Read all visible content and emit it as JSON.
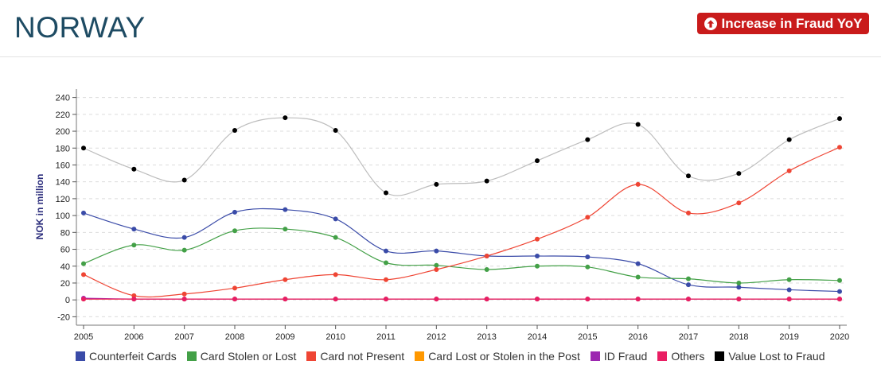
{
  "header": {
    "title": "NORWAY",
    "badge_label": "Increase in Fraud YoY",
    "badge_icon": "arrow-up-circle-icon",
    "badge_color": "#c91b1b"
  },
  "chart_data": {
    "type": "line",
    "x": [
      "2005",
      "2006",
      "2007",
      "2008",
      "2009",
      "2010",
      "2011",
      "2012",
      "2013",
      "2014",
      "2015",
      "2016",
      "2017",
      "2018",
      "2019",
      "2020"
    ],
    "ylabel": "NOK in million",
    "ylim": [
      -30,
      250
    ],
    "yticks": [
      -20,
      0,
      20,
      40,
      60,
      80,
      100,
      120,
      140,
      160,
      180,
      200,
      220,
      240
    ],
    "grid": true,
    "legend_position": "bottom",
    "series": [
      {
        "name": "Counterfeit Cards",
        "color": "#3a4ba8",
        "values": [
          103,
          84,
          74,
          104,
          107,
          96,
          58,
          58,
          52,
          52,
          51,
          43,
          18,
          15,
          12,
          10
        ]
      },
      {
        "name": "Card Stolen or Lost",
        "color": "#43a047",
        "values": [
          43,
          65,
          59,
          82,
          84,
          74,
          44,
          41,
          36,
          40,
          39,
          27,
          25,
          20,
          24,
          23
        ]
      },
      {
        "name": "Card not Present",
        "color": "#ef4534",
        "values": [
          30,
          5,
          7,
          14,
          24,
          30,
          24,
          36,
          52,
          72,
          98,
          137,
          103,
          115,
          153,
          181
        ]
      },
      {
        "name": "Card Lost or Stolen in the Post",
        "color": "#ff9800",
        "values": [
          1,
          1,
          1,
          1,
          1,
          1,
          1,
          1,
          1,
          1,
          1,
          1,
          1,
          1,
          1,
          1
        ]
      },
      {
        "name": "ID Fraud",
        "color": "#9c27b0",
        "values": [
          2,
          1,
          1,
          1,
          1,
          1,
          1,
          1,
          1,
          1,
          1,
          1,
          1,
          1,
          1,
          1
        ]
      },
      {
        "name": "Others",
        "color": "#e91e63",
        "values": [
          1,
          1,
          1,
          1,
          1,
          1,
          1,
          1,
          1,
          1,
          1,
          1,
          1,
          1,
          1,
          1
        ]
      },
      {
        "name": "Value Lost to Fraud",
        "color": "#000000",
        "line_color": "#bdbdbd",
        "values": [
          180,
          155,
          142,
          201,
          216,
          201,
          127,
          137,
          141,
          165,
          190,
          208,
          147,
          150,
          190,
          215
        ]
      }
    ]
  }
}
